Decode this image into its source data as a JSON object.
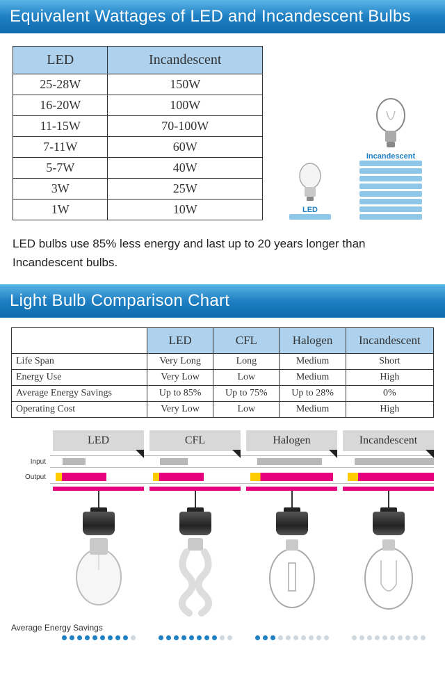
{
  "colors": {
    "banner_grad_top": "#5ab4e6",
    "banner_grad_bottom": "#0e6bad",
    "header_bg": "#aed2ed",
    "border": "#333333",
    "bar_blue": "#8fc7e8",
    "tab_bg": "#d8d8d8",
    "input_bar": "#b8b8b8",
    "output_magenta": "#e6007e",
    "output_yellow": "#ffcc00",
    "dot_on": "#1e7fc2",
    "dot_off": "#cfd8de"
  },
  "title1": "Equivalent Wattages of LED and Incandescent Bulbs",
  "wattage_table": {
    "columns": [
      "LED",
      "Incandescent"
    ],
    "rows": [
      [
        "25-28W",
        "150W"
      ],
      [
        "16-20W",
        "100W"
      ],
      [
        "11-15W",
        "70-100W"
      ],
      [
        "7-11W",
        "60W"
      ],
      [
        "5-7W",
        "40W"
      ],
      [
        "3W",
        "25W"
      ],
      [
        "1W",
        "10W"
      ]
    ]
  },
  "bulb_graphic": {
    "led_label": "LED",
    "inc_label": "Incandescent",
    "led_bars": 1,
    "inc_bars": 8
  },
  "note_text": "LED bulbs use 85% less energy and last up to 20 years longer than Incandescent bulbs.",
  "title2": "Light Bulb Comparison Chart",
  "comparison_table": {
    "columns": [
      "",
      "LED",
      "CFL",
      "Halogen",
      "Incandescent"
    ],
    "rows": [
      [
        "Life Span",
        "Very Long",
        "Long",
        "Medium",
        "Short"
      ],
      [
        "Energy Use",
        "Very Low",
        "Low",
        "Medium",
        "High"
      ],
      [
        "Average Energy Savings",
        "Up to 85%",
        "Up to 75%",
        "Up to 28%",
        "0%"
      ],
      [
        "Operating Cost",
        "Very Low",
        "Low",
        "Medium",
        "High"
      ]
    ]
  },
  "chart": {
    "tabs": [
      "LED",
      "CFL",
      "Halogen",
      "Incandescent"
    ],
    "input_label": "Input",
    "output_label": "Output",
    "input_fractions": [
      0.25,
      0.3,
      0.7,
      0.95
    ],
    "output_fractions": [
      0.55,
      0.55,
      0.9,
      0.95
    ],
    "bulb_types": [
      "led",
      "cfl",
      "halogen",
      "incandescent"
    ]
  },
  "aes_label": "Average Energy Savings",
  "dots": {
    "total": 10,
    "filled": [
      9,
      8,
      3,
      0
    ]
  }
}
